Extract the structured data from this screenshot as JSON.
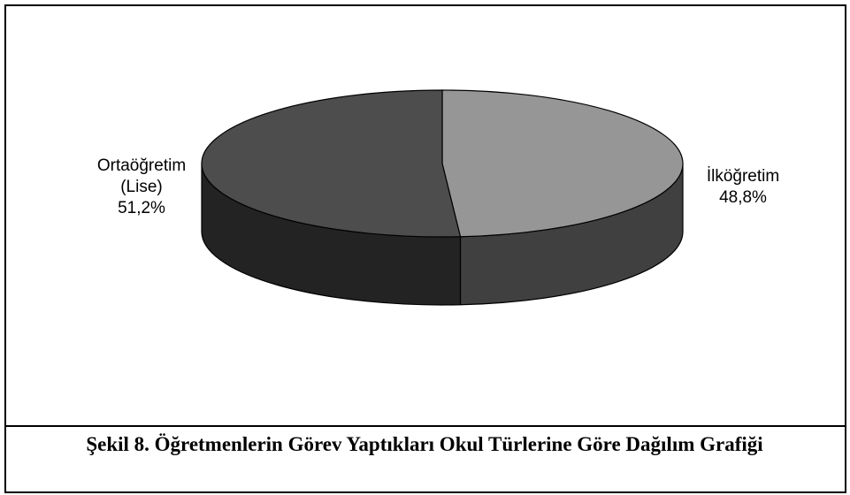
{
  "chart_data": {
    "type": "pie",
    "title": "Şekil 8. Öğretmenlerin Görev Yaptıkları Okul Türlerine Göre Dağılım Grafiği",
    "categories": [
      "İlköğretim",
      "Ortaöğretim (Lise)"
    ],
    "values": [
      48.8,
      51.2
    ],
    "value_labels": [
      "48,8%",
      "51,2%"
    ],
    "colors": [
      "#969696",
      "#4d4d4d"
    ],
    "side_colors": [
      "#404040",
      "#232323"
    ],
    "three_d": true
  }
}
